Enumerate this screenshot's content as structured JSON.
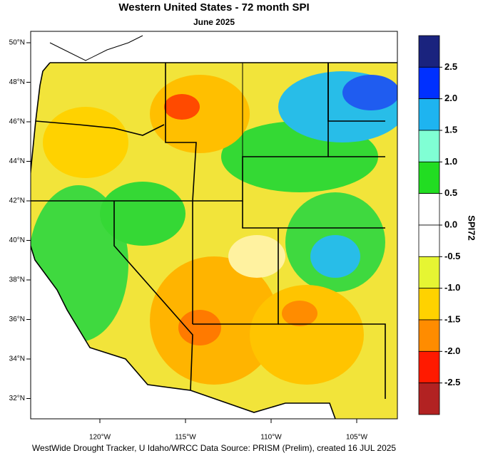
{
  "title": "Western United States - 72 month SPI",
  "subtitle": "June 2025",
  "latitude_labels": [
    "50°N",
    "48°N",
    "46°N",
    "44°N",
    "42°N",
    "40°N",
    "38°N",
    "36°N",
    "34°N",
    "32°N"
  ],
  "longitude_labels": [
    "120°W",
    "115°W",
    "110°W",
    "105°W"
  ],
  "colorbar": {
    "title": "SPI72",
    "ticks": [
      2.5,
      {
        "value": 2,
        "label": "2.0"
      },
      1.5,
      {
        "value": 1,
        "label": "1.0"
      },
      0.5,
      {
        "value": 0,
        "label": "0.0"
      },
      -0.5,
      {
        "value": -1,
        "label": "-1.0"
      },
      -1.5,
      {
        "value": -2,
        "label": "-2.0"
      },
      -2.5
    ],
    "colors": [
      "#1a237e",
      "#0030ff",
      "#1eb4f0",
      "#80ffd4",
      "#22dd22",
      "#ffffff",
      "#ffffff",
      "#e6f533",
      "#ffd200",
      "#ff8c00",
      "#ff1a00",
      "#b22222"
    ]
  },
  "footer": "WestWide Drought Tracker, U Idaho/WRCC Data Source: PRISM (Prelim), created 16 JUL 2025"
}
